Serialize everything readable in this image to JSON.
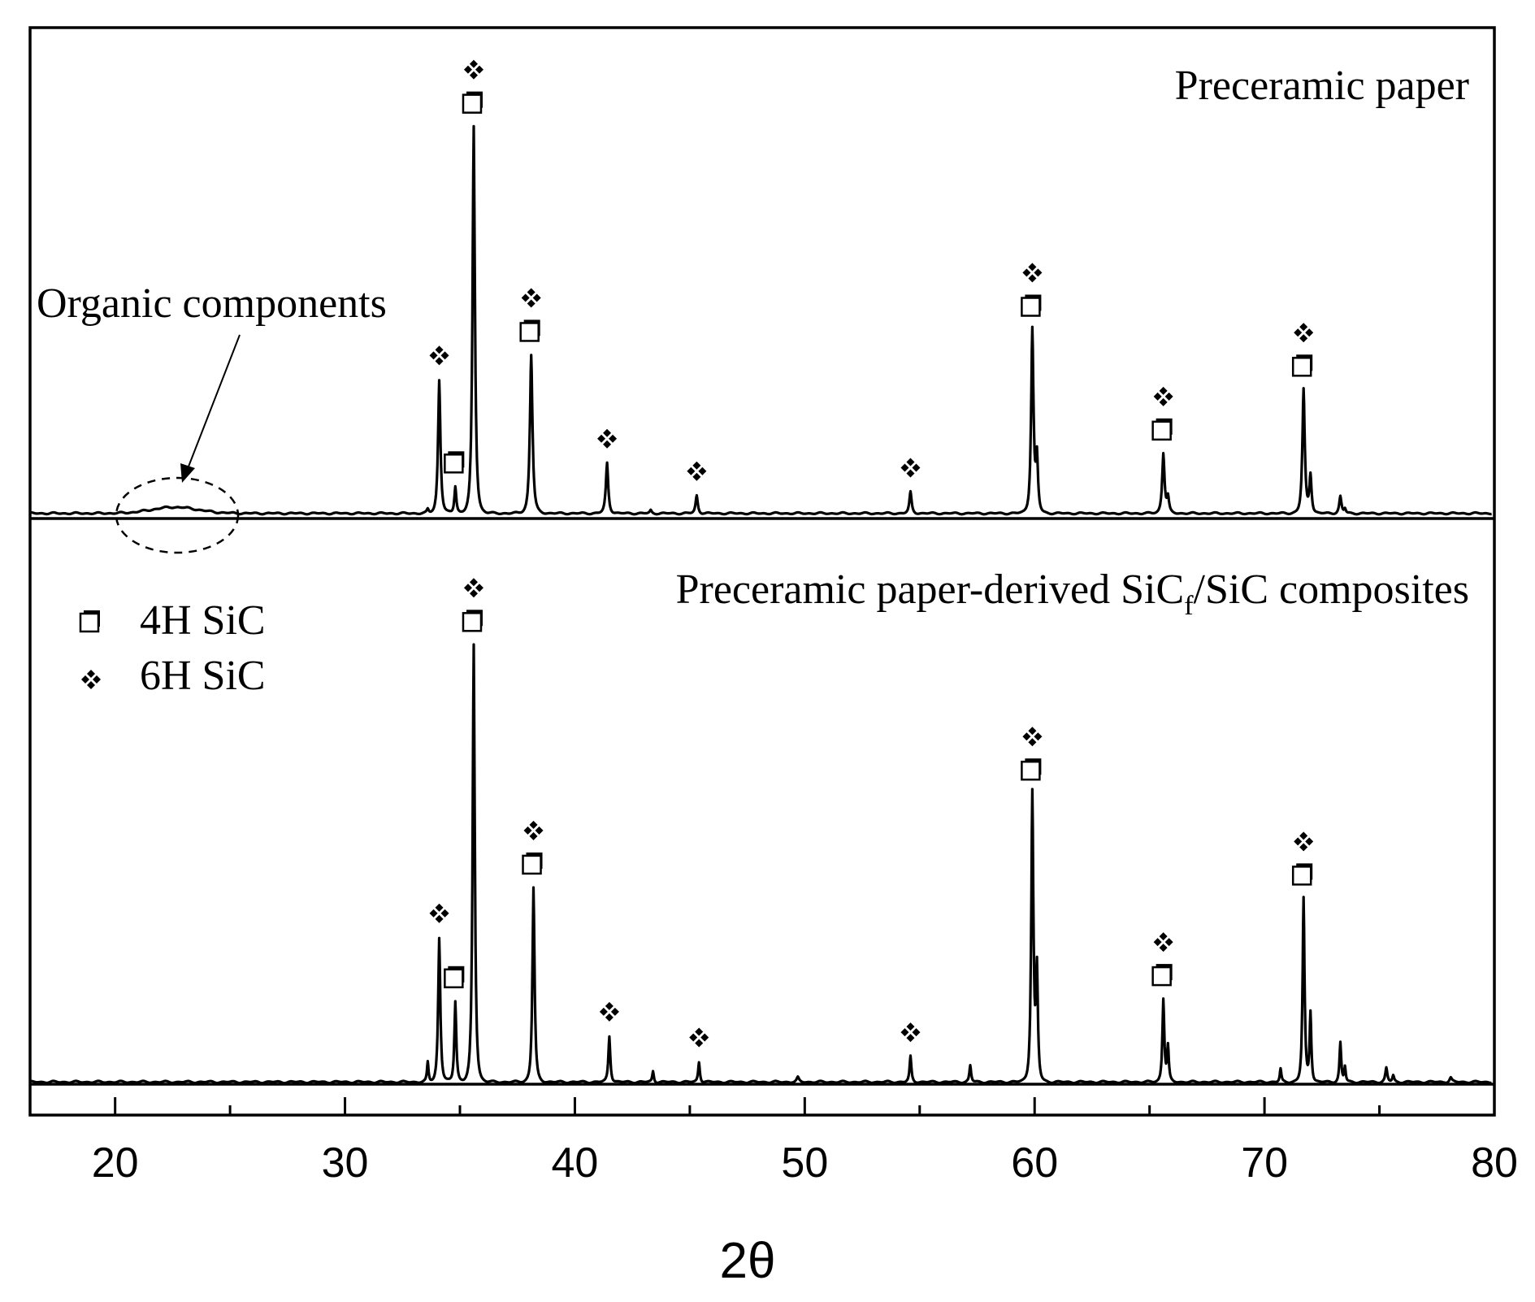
{
  "chart_data": {
    "type": "line",
    "xlabel": "2θ",
    "ylabel": "",
    "xlim": [
      16.3,
      80
    ],
    "xticks": [
      20,
      30,
      40,
      50,
      60,
      70,
      80
    ],
    "xminor": [
      25,
      35,
      45,
      55,
      65,
      75
    ],
    "grid": false,
    "panels": [
      {
        "name": "Preceramic paper",
        "title": "Preceramic paper",
        "ylim": [
          0,
          100
        ],
        "baseline": 0.5,
        "hump": {
          "center": 22.6,
          "width": 1.4,
          "height": 1.6
        },
        "peaks": [
          {
            "x": 33.6,
            "h": 1.0,
            "w": 0.08
          },
          {
            "x": 34.1,
            "h": 34.5,
            "w": 0.11
          },
          {
            "x": 34.8,
            "h": 7.0,
            "w": 0.09
          },
          {
            "x": 35.6,
            "h": 100.0,
            "w": 0.11
          },
          {
            "x": 38.1,
            "h": 41.0,
            "w": 0.12
          },
          {
            "x": 41.4,
            "h": 13.0,
            "w": 0.11
          },
          {
            "x": 43.3,
            "h": 0.8,
            "w": 0.08
          },
          {
            "x": 45.3,
            "h": 4.6,
            "w": 0.1
          },
          {
            "x": 54.6,
            "h": 5.5,
            "w": 0.1
          },
          {
            "x": 59.9,
            "h": 47.5,
            "w": 0.11
          },
          {
            "x": 60.1,
            "h": 14.0,
            "w": 0.1
          },
          {
            "x": 65.6,
            "h": 15.5,
            "w": 0.11
          },
          {
            "x": 65.8,
            "h": 4.0,
            "w": 0.1
          },
          {
            "x": 71.7,
            "h": 32.0,
            "w": 0.11
          },
          {
            "x": 72.0,
            "h": 10.0,
            "w": 0.1
          },
          {
            "x": 73.3,
            "h": 4.4,
            "w": 0.1
          },
          {
            "x": 73.5,
            "h": 1.2,
            "w": 0.08
          }
        ],
        "markers": [
          {
            "x": 34.1,
            "phases": [
              "6H"
            ]
          },
          {
            "x": 34.8,
            "phases": [
              "4H"
            ]
          },
          {
            "x": 35.6,
            "phases": [
              "6H",
              "4H"
            ]
          },
          {
            "x": 38.1,
            "phases": [
              "6H",
              "4H"
            ]
          },
          {
            "x": 41.4,
            "phases": [
              "6H"
            ]
          },
          {
            "x": 45.3,
            "phases": [
              "6H"
            ]
          },
          {
            "x": 54.6,
            "phases": [
              "6H"
            ]
          },
          {
            "x": 59.9,
            "phases": [
              "6H",
              "4H"
            ]
          },
          {
            "x": 65.6,
            "phases": [
              "6H",
              "4H"
            ]
          },
          {
            "x": 71.7,
            "phases": [
              "6H",
              "4H"
            ]
          }
        ],
        "annotation": "Organic components"
      },
      {
        "name": "Preceramic paper-derived SiCf/SiC composites",
        "title_main": "Preceramic paper-derived SiC",
        "title_sub": "f",
        "title_rest": "/SiC composites",
        "ylim": [
          0,
          100
        ],
        "baseline": 0.5,
        "peaks": [
          {
            "x": 33.6,
            "h": 4.5,
            "w": 0.07
          },
          {
            "x": 34.1,
            "h": 33.0,
            "w": 0.1
          },
          {
            "x": 34.8,
            "h": 18.5,
            "w": 0.09
          },
          {
            "x": 35.6,
            "h": 100.0,
            "w": 0.1
          },
          {
            "x": 38.2,
            "h": 44.5,
            "w": 0.1
          },
          {
            "x": 41.5,
            "h": 10.5,
            "w": 0.09
          },
          {
            "x": 43.4,
            "h": 2.5,
            "w": 0.07
          },
          {
            "x": 45.4,
            "h": 4.6,
            "w": 0.08
          },
          {
            "x": 49.7,
            "h": 1.0,
            "w": 0.1
          },
          {
            "x": 54.6,
            "h": 5.8,
            "w": 0.08
          },
          {
            "x": 57.2,
            "h": 3.8,
            "w": 0.08
          },
          {
            "x": 59.9,
            "h": 66.0,
            "w": 0.1
          },
          {
            "x": 60.1,
            "h": 25.0,
            "w": 0.09
          },
          {
            "x": 65.6,
            "h": 19.0,
            "w": 0.09
          },
          {
            "x": 65.8,
            "h": 8.0,
            "w": 0.08
          },
          {
            "x": 70.7,
            "h": 3.0,
            "w": 0.07
          },
          {
            "x": 71.7,
            "h": 42.0,
            "w": 0.09
          },
          {
            "x": 72.0,
            "h": 16.0,
            "w": 0.08
          },
          {
            "x": 73.3,
            "h": 9.0,
            "w": 0.08
          },
          {
            "x": 73.5,
            "h": 3.5,
            "w": 0.07
          },
          {
            "x": 75.3,
            "h": 3.2,
            "w": 0.09
          },
          {
            "x": 75.6,
            "h": 1.5,
            "w": 0.08
          },
          {
            "x": 78.1,
            "h": 1.0,
            "w": 0.1
          }
        ],
        "markers": [
          {
            "x": 34.1,
            "phases": [
              "6H"
            ]
          },
          {
            "x": 34.8,
            "phases": [
              "4H"
            ]
          },
          {
            "x": 35.6,
            "phases": [
              "6H",
              "4H"
            ]
          },
          {
            "x": 38.2,
            "phases": [
              "6H",
              "4H"
            ]
          },
          {
            "x": 41.5,
            "phases": [
              "6H"
            ]
          },
          {
            "x": 45.4,
            "phases": [
              "6H"
            ]
          },
          {
            "x": 54.6,
            "phases": [
              "6H"
            ]
          },
          {
            "x": 59.9,
            "phases": [
              "6H",
              "4H"
            ]
          },
          {
            "x": 65.6,
            "phases": [
              "6H",
              "4H"
            ]
          },
          {
            "x": 71.7,
            "phases": [
              "6H",
              "4H"
            ]
          }
        ]
      }
    ],
    "legend": [
      {
        "symbol": "4H",
        "label": "4H SiC"
      },
      {
        "symbol": "6H",
        "label": "6H SiC"
      }
    ],
    "legend_position": "upper-left of lower panel"
  }
}
